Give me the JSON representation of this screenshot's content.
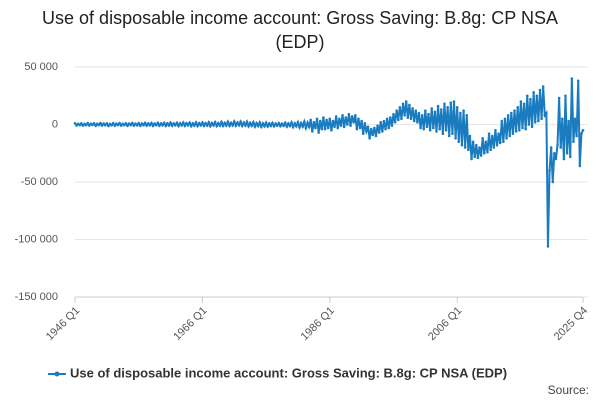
{
  "chart_data": {
    "type": "line",
    "title": "Use of disposable income account: Gross Saving: B.8g: CP NSA (EDP)",
    "source": "Source:",
    "categories": [
      "1946 Q1",
      null,
      null,
      null,
      null,
      null,
      null,
      null,
      null,
      null,
      null,
      null,
      null,
      null,
      null,
      null,
      null,
      null,
      null,
      null,
      null,
      null,
      null,
      null,
      null,
      null,
      null,
      null,
      null,
      null,
      null,
      null,
      null,
      null,
      null,
      null,
      null,
      null,
      null,
      null,
      null,
      null,
      null,
      null,
      null,
      null,
      null,
      null,
      null,
      null,
      null,
      null,
      null,
      null,
      null,
      null,
      null,
      null,
      null,
      null,
      null,
      null,
      null,
      null,
      null,
      null,
      null,
      null,
      null,
      null,
      null,
      null,
      null,
      null,
      null,
      null,
      null,
      null,
      null,
      null,
      "1966 Q1",
      null,
      null,
      null,
      null,
      null,
      null,
      null,
      null,
      null,
      null,
      null,
      null,
      null,
      null,
      null,
      null,
      null,
      null,
      null,
      null,
      null,
      null,
      null,
      null,
      null,
      null,
      null,
      null,
      null,
      null,
      null,
      null,
      null,
      null,
      null,
      null,
      null,
      null,
      null,
      null,
      null,
      null,
      null,
      null,
      null,
      null,
      null,
      null,
      null,
      null,
      null,
      null,
      null,
      null,
      null,
      null,
      null,
      null,
      null,
      null,
      null,
      null,
      null,
      null,
      null,
      null,
      null,
      null,
      null,
      null,
      null,
      null,
      null,
      null,
      null,
      null,
      null,
      null,
      null,
      "1986 Q1",
      null,
      null,
      null,
      null,
      null,
      null,
      null,
      null,
      null,
      null,
      null,
      null,
      null,
      null,
      null,
      null,
      null,
      null,
      null,
      null,
      null,
      null,
      null,
      null,
      null,
      null,
      null,
      null,
      null,
      null,
      null,
      null,
      null,
      null,
      null,
      null,
      null,
      null,
      null,
      null,
      null,
      null,
      null,
      null,
      null,
      null,
      null,
      null,
      null,
      null,
      null,
      null,
      null,
      null,
      null,
      null,
      null,
      null,
      null,
      null,
      null,
      null,
      null,
      null,
      null,
      null,
      null,
      null,
      null,
      null,
      null,
      null,
      null,
      null,
      null,
      null,
      null,
      null,
      null,
      "2006 Q1",
      null,
      null,
      null,
      null,
      null,
      null,
      null,
      null,
      null,
      null,
      null,
      null,
      null,
      null,
      null,
      null,
      null,
      null,
      null,
      null,
      null,
      null,
      null,
      null,
      null,
      null,
      null,
      null,
      null,
      null,
      null,
      null,
      null,
      null,
      null,
      null,
      null,
      null,
      null,
      null,
      null,
      null,
      null,
      null,
      null,
      null,
      null,
      null,
      null,
      null,
      null,
      null,
      null,
      null,
      null,
      null,
      null,
      null,
      null,
      null,
      null,
      null,
      null,
      null,
      null,
      null,
      null,
      null,
      null,
      null,
      null,
      null,
      null,
      null,
      null,
      null,
      null,
      null,
      "2025 Q4"
    ],
    "series": [
      {
        "name": "Use of disposable income account: Gross Saving: B.8g: CP NSA (EDP)",
        "color": "#1a7bbf",
        "values": [
          1000,
          -800,
          600,
          -500,
          900,
          -1000,
          500,
          -600,
          1100,
          -900,
          700,
          -400,
          1000,
          -1100,
          600,
          -500,
          1200,
          -900,
          800,
          -600,
          900,
          -1200,
          500,
          -700,
          1100,
          -1000,
          700,
          -500,
          1200,
          -900,
          600,
          -600,
          1000,
          -1100,
          800,
          -500,
          1300,
          -1000,
          700,
          -700,
          1200,
          -1100,
          800,
          -600,
          1400,
          -1000,
          900,
          -700,
          1300,
          -1200,
          800,
          -600,
          1500,
          -1100,
          900,
          -700,
          1400,
          -1200,
          1000,
          -800,
          1600,
          -1100,
          900,
          -700,
          1500,
          -1300,
          1000,
          -800,
          1700,
          -1200,
          1100,
          -700,
          1600,
          -1400,
          1000,
          -900,
          1800,
          -1300,
          1200,
          -800,
          1700,
          -1200,
          1100,
          -900,
          1900,
          -1400,
          1300,
          -800,
          2000,
          -1300,
          1200,
          -1000,
          2200,
          -1200,
          1400,
          -900,
          2400,
          -1100,
          1500,
          -800,
          2600,
          -1000,
          1700,
          -700,
          2500,
          -1200,
          1600,
          -900,
          2300,
          -1500,
          1400,
          -1100,
          2000,
          -1800,
          1200,
          -1300,
          1800,
          -2000,
          1000,
          -1500,
          1600,
          -1700,
          900,
          -1200,
          1400,
          -1500,
          800,
          -1000,
          1200,
          -1400,
          700,
          -1100,
          1500,
          -1800,
          900,
          -1300,
          1800,
          -2200,
          1000,
          -1500,
          2000,
          -2500,
          1200,
          -1800,
          2500,
          -3000,
          1500,
          -2000,
          4000,
          -6000,
          2000,
          -3000,
          5000,
          -7000,
          3000,
          -4000,
          6000,
          -4000,
          4000,
          -3000,
          5000,
          -5000,
          3000,
          -2000,
          7000,
          -3000,
          5000,
          -1000,
          8000,
          -2000,
          6000,
          0,
          9000,
          -1000,
          7000,
          2000,
          8000,
          -4000,
          5000,
          -3000,
          3000,
          -8000,
          1000,
          -6000,
          -2000,
          -12000,
          -4000,
          -9000,
          -3000,
          -10000,
          -1000,
          -7000,
          2000,
          -6000,
          3000,
          -4000,
          5000,
          -3000,
          6000,
          -1000,
          9000,
          2000,
          12000,
          4000,
          15000,
          5000,
          18000,
          8000,
          20000,
          6000,
          17000,
          5000,
          14000,
          3000,
          12000,
          2000,
          10000,
          -3000,
          8000,
          -4000,
          12000,
          -2000,
          9000,
          -5000,
          14000,
          -3000,
          11000,
          -6000,
          16000,
          -4000,
          13000,
          -8000,
          18000,
          -5000,
          15000,
          -10000,
          19000,
          -8000,
          20000,
          -12000,
          15000,
          -15000,
          10000,
          -18000,
          12000,
          -20000,
          8000,
          -22000,
          -10000,
          -30000,
          -15000,
          -28000,
          -18000,
          -29000,
          -20000,
          -27000,
          -12000,
          -25000,
          -15000,
          -24000,
          -8000,
          -22000,
          -10000,
          -20000,
          -5000,
          -18000,
          -8000,
          -16000,
          3000,
          -15000,
          5000,
          -12000,
          8000,
          -10000,
          10000,
          -8000,
          12000,
          -6000,
          15000,
          -5000,
          20000,
          -3000,
          18000,
          -4000,
          25000,
          0,
          22000,
          -2000,
          28000,
          2000,
          25000,
          3000,
          30000,
          5000,
          33000,
          8000,
          10000,
          -106000,
          -40000,
          -20000,
          -50000,
          -25000,
          -30000,
          -18000,
          23000,
          -20000,
          5000,
          -30000,
          25000,
          -25000,
          3000,
          -28000,
          40000,
          -15000,
          5000,
          -10000,
          38000,
          -36000,
          -8000,
          -5000
        ]
      }
    ],
    "ylim": [
      -150000,
      50000
    ],
    "yticks": [
      {
        "value": -150000,
        "label": "-150 000"
      },
      {
        "value": -100000,
        "label": "-100 000"
      },
      {
        "value": -50000,
        "label": "-50 000"
      },
      0,
      {
        "value": 50000,
        "label": "50 000"
      }
    ],
    "grid": true,
    "legend": "bottom"
  }
}
